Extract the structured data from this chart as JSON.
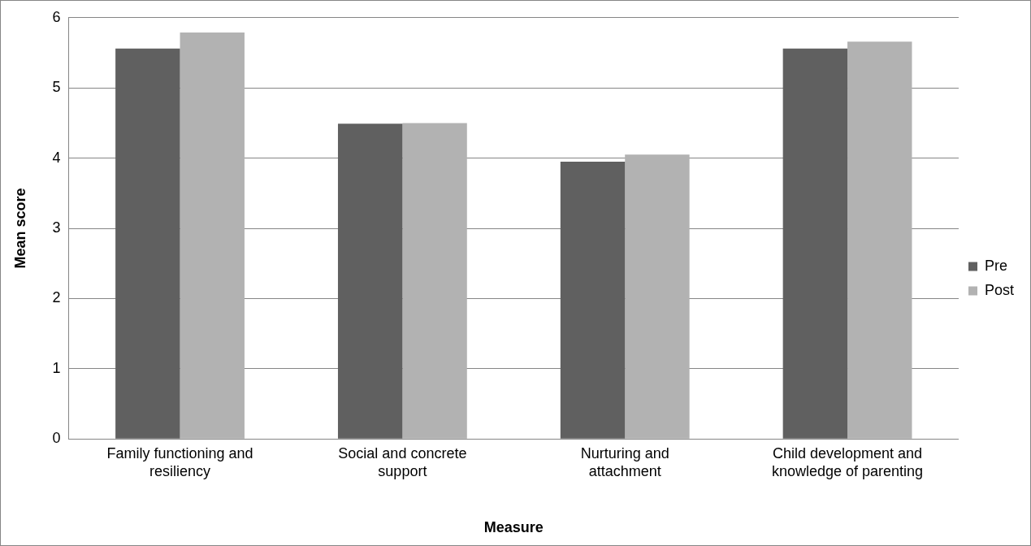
{
  "chart_data": {
    "type": "bar",
    "xlabel": "Measure",
    "ylabel": "Mean score",
    "categories": [
      "Family functioning and resiliency",
      "Social and concrete support",
      "Nurturing and attachment",
      "Child development and knowledge of parenting"
    ],
    "series": [
      {
        "name": "Pre",
        "color": "#606060",
        "values": [
          5.56,
          4.49,
          3.95,
          5.56
        ]
      },
      {
        "name": "Post",
        "color": "#b2b2b2",
        "values": [
          5.79,
          4.5,
          4.05,
          5.66
        ]
      }
    ],
    "ylim": [
      0,
      6
    ],
    "yticks": [
      0,
      1,
      2,
      3,
      4,
      5,
      6
    ],
    "grid": "y",
    "legend": "right"
  }
}
